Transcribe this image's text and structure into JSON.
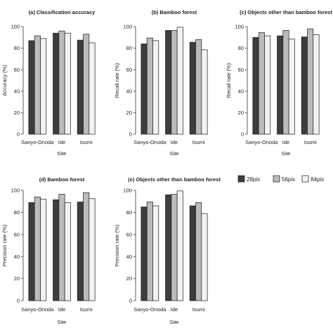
{
  "colors": {
    "28pix": "#3d3d3d",
    "56pix": "#b8bcbb",
    "84pix": "#f2f2f2",
    "stroke": "#1a1a1a"
  },
  "legend": {
    "placement": "right",
    "entries": [
      {
        "key": "28pix",
        "label": "28pix"
      },
      {
        "key": "56pix",
        "label": "56pix"
      },
      {
        "key": "84pix",
        "label": "84pix"
      }
    ]
  },
  "chart_data": [
    {
      "type": "bar",
      "title": "(a) Classification accuracy",
      "xlabel": "Site",
      "ylabel": "Accuracy (%)",
      "ylim": [
        0,
        100
      ],
      "yticks": [
        "0",
        "20",
        "40",
        "60",
        "80",
        "100"
      ],
      "categories": [
        "Sanyo-Onoda",
        "Ide",
        "Isumi"
      ],
      "series": [
        {
          "name": "28pix",
          "values": [
            87,
            94,
            87.5
          ]
        },
        {
          "name": "56pix",
          "values": [
            91.5,
            96,
            93
          ]
        },
        {
          "name": "84pix",
          "values": [
            89,
            94,
            85
          ]
        }
      ]
    },
    {
      "type": "bar",
      "title": "(b) Bamboo forest",
      "xlabel": "Site",
      "ylabel": "Recall rate (%)",
      "ylim": [
        0,
        100
      ],
      "yticks": [
        "0",
        "20",
        "40",
        "60",
        "80",
        "100"
      ],
      "categories": [
        "Sanyo-Onoda",
        "Ide",
        "Isumi"
      ],
      "series": [
        {
          "name": "28pix",
          "values": [
            84,
            96.5,
            85.5
          ]
        },
        {
          "name": "56pix",
          "values": [
            89.5,
            96.5,
            88
          ]
        },
        {
          "name": "84pix",
          "values": [
            87,
            99.5,
            78.5
          ]
        }
      ]
    },
    {
      "type": "bar",
      "title": "(c) Objects other than bamboo forest",
      "xlabel": "Site",
      "ylabel": "Recall rate (%)",
      "ylim": [
        0,
        100
      ],
      "yticks": [
        "0",
        "20",
        "40",
        "60",
        "80",
        "100"
      ],
      "categories": [
        "Sanyo-Onoda",
        "Ide",
        "Isumi"
      ],
      "series": [
        {
          "name": "28pix",
          "values": [
            90,
            91.5,
            90.5
          ]
        },
        {
          "name": "56pix",
          "values": [
            94.5,
            96.5,
            98
          ]
        },
        {
          "name": "84pix",
          "values": [
            91.5,
            88.5,
            92.5
          ]
        }
      ]
    },
    {
      "type": "bar",
      "title": "(d) Bamboo forest",
      "xlabel": "Site",
      "ylabel": "Precision rate (%)",
      "ylim": [
        0,
        100
      ],
      "yticks": [
        "0",
        "20",
        "40",
        "60",
        "80",
        "100"
      ],
      "categories": [
        "Sanyo-Onoda",
        "Ide",
        "Isumi"
      ],
      "series": [
        {
          "name": "28pix",
          "values": [
            89,
            91.5,
            89.5
          ]
        },
        {
          "name": "56pix",
          "values": [
            94,
            96.5,
            98
          ]
        },
        {
          "name": "84pix",
          "values": [
            92,
            89,
            92.5
          ]
        }
      ]
    },
    {
      "type": "bar",
      "title": "(e) Objects other than bamboo forest",
      "xlabel": "Site",
      "ylabel": "Precision rate (%)",
      "ylim": [
        0,
        100
      ],
      "yticks": [
        "0",
        "20",
        "40",
        "60",
        "80",
        "100"
      ],
      "categories": [
        "Sanyo-Onoda",
        "Ide",
        "Isumi"
      ],
      "series": [
        {
          "name": "28pix",
          "values": [
            85,
            96,
            86
          ]
        },
        {
          "name": "56pix",
          "values": [
            89.5,
            96.5,
            89
          ]
        },
        {
          "name": "84pix",
          "values": [
            86,
            99.5,
            79
          ]
        }
      ]
    }
  ]
}
